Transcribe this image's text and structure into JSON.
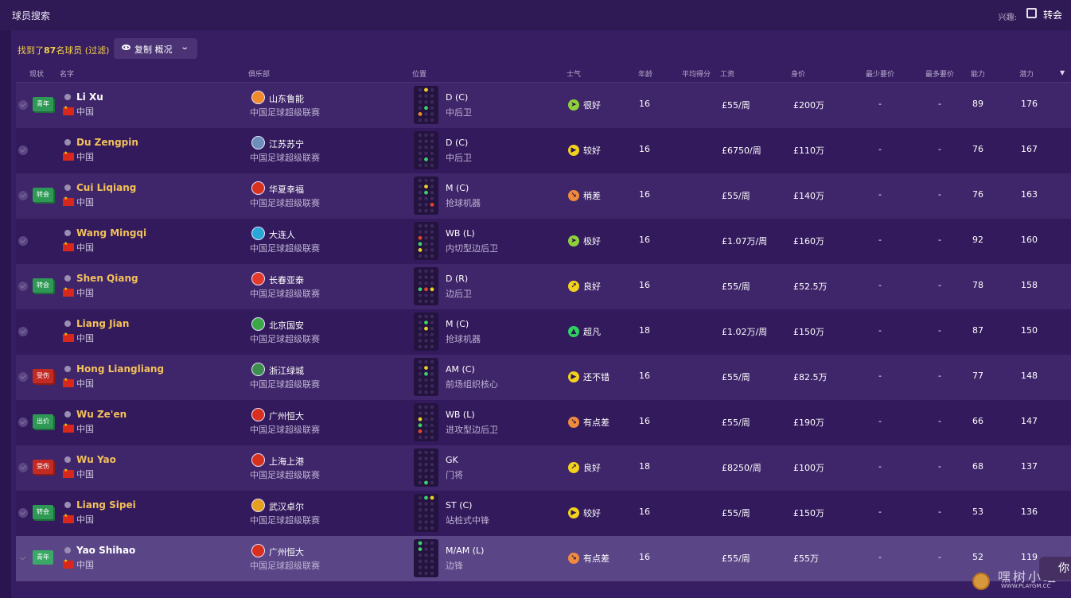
{
  "window": {
    "title": "球员搜索",
    "interest_label": "兴趣:",
    "transfer_label": "转会"
  },
  "summary": {
    "prefix": "找到了",
    "count": "87",
    "suffix": "名球员 (过滤)",
    "view_button": "复制 概况"
  },
  "columns": {
    "status": "现状",
    "name": "名字",
    "club": "俱乐部",
    "position": "位置",
    "morale": "士气",
    "age": "年龄",
    "avg_rating": "平均得分",
    "wage": "工资",
    "value": "身价",
    "min_fee": "最少要价",
    "max_fee": "最多要价",
    "ability": "能力",
    "potential": "潜力"
  },
  "colors": {
    "morale_great": "#8fd13a",
    "morale_good": "#f2d21f",
    "morale_poor": "#f08a3c",
    "morale_super": "#2fd160",
    "badge_green": "#2e9954",
    "badge_red": "#c42a24"
  },
  "players": [
    {
      "badge": "青年",
      "badge_color": "green",
      "name": "Li Xu",
      "name_style": "white",
      "nationality": "中国",
      "club": "山东鲁能",
      "league": "中国足球超级联赛",
      "position": "D (C)",
      "role": "中后卫",
      "morale": "很好",
      "morale_level": "great",
      "morale_icon": "plane-icon",
      "age": "16",
      "avg": "",
      "wage": "£55/周",
      "value": "£200万",
      "min": "-",
      "max": "-",
      "ability": "89",
      "potential": "176",
      "logo_color": "#f08a2a"
    },
    {
      "badge": "",
      "badge_color": "",
      "name": "Du Zengpin",
      "name_style": "gold",
      "nationality": "中国",
      "club": "江苏苏宁",
      "league": "中国足球超级联赛",
      "position": "D (C)",
      "role": "中后卫",
      "morale": "较好",
      "morale_level": "good",
      "morale_icon": "arrow-right-icon",
      "age": "16",
      "avg": "",
      "wage": "£6750/周",
      "value": "£110万",
      "min": "-",
      "max": "-",
      "ability": "76",
      "potential": "167",
      "logo_color": "#6b8fb8"
    },
    {
      "badge": "转会",
      "badge_color": "green",
      "name": "Cui Liqiang",
      "name_style": "gold",
      "nationality": "中国",
      "club": "华夏幸福",
      "league": "中国足球超级联赛",
      "position": "M (C)",
      "role": "抢球机器",
      "morale": "稍差",
      "morale_level": "poor",
      "morale_icon": "arrow-down-icon",
      "age": "16",
      "avg": "",
      "wage": "£55/周",
      "value": "£140万",
      "min": "-",
      "max": "-",
      "ability": "76",
      "potential": "163",
      "logo_color": "#d8321e"
    },
    {
      "badge": "",
      "badge_color": "",
      "name": "Wang Mingqi",
      "name_style": "gold",
      "nationality": "中国",
      "club": "大连人",
      "league": "中国足球超级联赛",
      "position": "WB (L)",
      "role": "内切型边后卫",
      "morale": "极好",
      "morale_level": "great",
      "morale_icon": "plane-icon",
      "age": "16",
      "avg": "",
      "wage": "£1.07万/周",
      "value": "£160万",
      "min": "-",
      "max": "-",
      "ability": "92",
      "potential": "160",
      "logo_color": "#28a8d8"
    },
    {
      "badge": "转会",
      "badge_color": "green",
      "name": "Shen Qiang",
      "name_style": "gold",
      "nationality": "中国",
      "club": "长春亚泰",
      "league": "中国足球超级联赛",
      "position": "D (R)",
      "role": "边后卫",
      "morale": "良好",
      "morale_level": "good",
      "morale_icon": "arrow-upright-icon",
      "age": "16",
      "avg": "",
      "wage": "£55/周",
      "value": "£52.5万",
      "min": "-",
      "max": "-",
      "ability": "78",
      "potential": "158",
      "logo_color": "#e33a2c"
    },
    {
      "badge": "",
      "badge_color": "",
      "name": "Liang Jian",
      "name_style": "gold",
      "nationality": "中国",
      "club": "北京国安",
      "league": "中国足球超级联赛",
      "position": "M (C)",
      "role": "抢球机器",
      "morale": "超凡",
      "morale_level": "super",
      "morale_icon": "arrow-up-icon",
      "age": "18",
      "avg": "",
      "wage": "£1.02万/周",
      "value": "£150万",
      "min": "-",
      "max": "-",
      "ability": "87",
      "potential": "150",
      "logo_color": "#3aa847"
    },
    {
      "badge": "受伤",
      "badge_color": "red",
      "name": "Hong Liangliang",
      "name_style": "gold",
      "nationality": "中国",
      "club": "浙江绿城",
      "league": "中国足球超级联赛",
      "position": "AM (C)",
      "role": "前场组织核心",
      "morale": "还不错",
      "morale_level": "good",
      "morale_icon": "arrow-right-icon",
      "age": "16",
      "avg": "",
      "wage": "£55/周",
      "value": "£82.5万",
      "min": "-",
      "max": "-",
      "ability": "77",
      "potential": "148",
      "logo_color": "#3d8f4e"
    },
    {
      "badge": "出价",
      "badge_color": "green",
      "name": "Wu Ze'en",
      "name_style": "gold",
      "nationality": "中国",
      "club": "广州恒大",
      "league": "中国足球超级联赛",
      "position": "WB (L)",
      "role": "进攻型边后卫",
      "morale": "有点差",
      "morale_level": "poor",
      "morale_icon": "arrow-down-icon",
      "age": "16",
      "avg": "",
      "wage": "£55/周",
      "value": "£190万",
      "min": "-",
      "max": "-",
      "ability": "66",
      "potential": "147",
      "logo_color": "#d8301e"
    },
    {
      "badge": "受伤",
      "badge_color": "red",
      "name": "Wu Yao",
      "name_style": "gold",
      "nationality": "中国",
      "club": "上海上港",
      "league": "中国足球超级联赛",
      "position": "GK",
      "role": "门将",
      "morale": "良好",
      "morale_level": "good",
      "morale_icon": "arrow-upright-icon",
      "age": "18",
      "avg": "",
      "wage": "£8250/周",
      "value": "£100万",
      "min": "-",
      "max": "-",
      "ability": "68",
      "potential": "137",
      "logo_color": "#d8301e"
    },
    {
      "badge": "转会",
      "badge_color": "green",
      "name": "Liang Sipei",
      "name_style": "gold",
      "nationality": "中国",
      "club": "武汉卓尔",
      "league": "中国足球超级联赛",
      "position": "ST (C)",
      "role": "站桩式中锋",
      "morale": "较好",
      "morale_level": "good",
      "morale_icon": "arrow-right-icon",
      "age": "16",
      "avg": "",
      "wage": "£55/周",
      "value": "£150万",
      "min": "-",
      "max": "-",
      "ability": "53",
      "potential": "136",
      "logo_color": "#e6a020"
    },
    {
      "badge": "青年",
      "badge_color": "bright",
      "name": "Yao Shihao",
      "name_style": "white",
      "nationality": "中国",
      "club": "广州恒大",
      "league": "中国足球超级联赛",
      "position": "M/AM (L)",
      "role": "边锋",
      "morale": "有点差",
      "morale_level": "poor",
      "morale_icon": "arrow-down-icon",
      "age": "16",
      "avg": "",
      "wage": "£55/周",
      "value": "£55万",
      "min": "-",
      "max": "-",
      "ability": "52",
      "potential": "119",
      "logo_color": "#d8301e"
    }
  ],
  "watermark": {
    "cn": "嘿树小组",
    "url": "WWW.PLAYGM.CC"
  },
  "side_tab": "你"
}
